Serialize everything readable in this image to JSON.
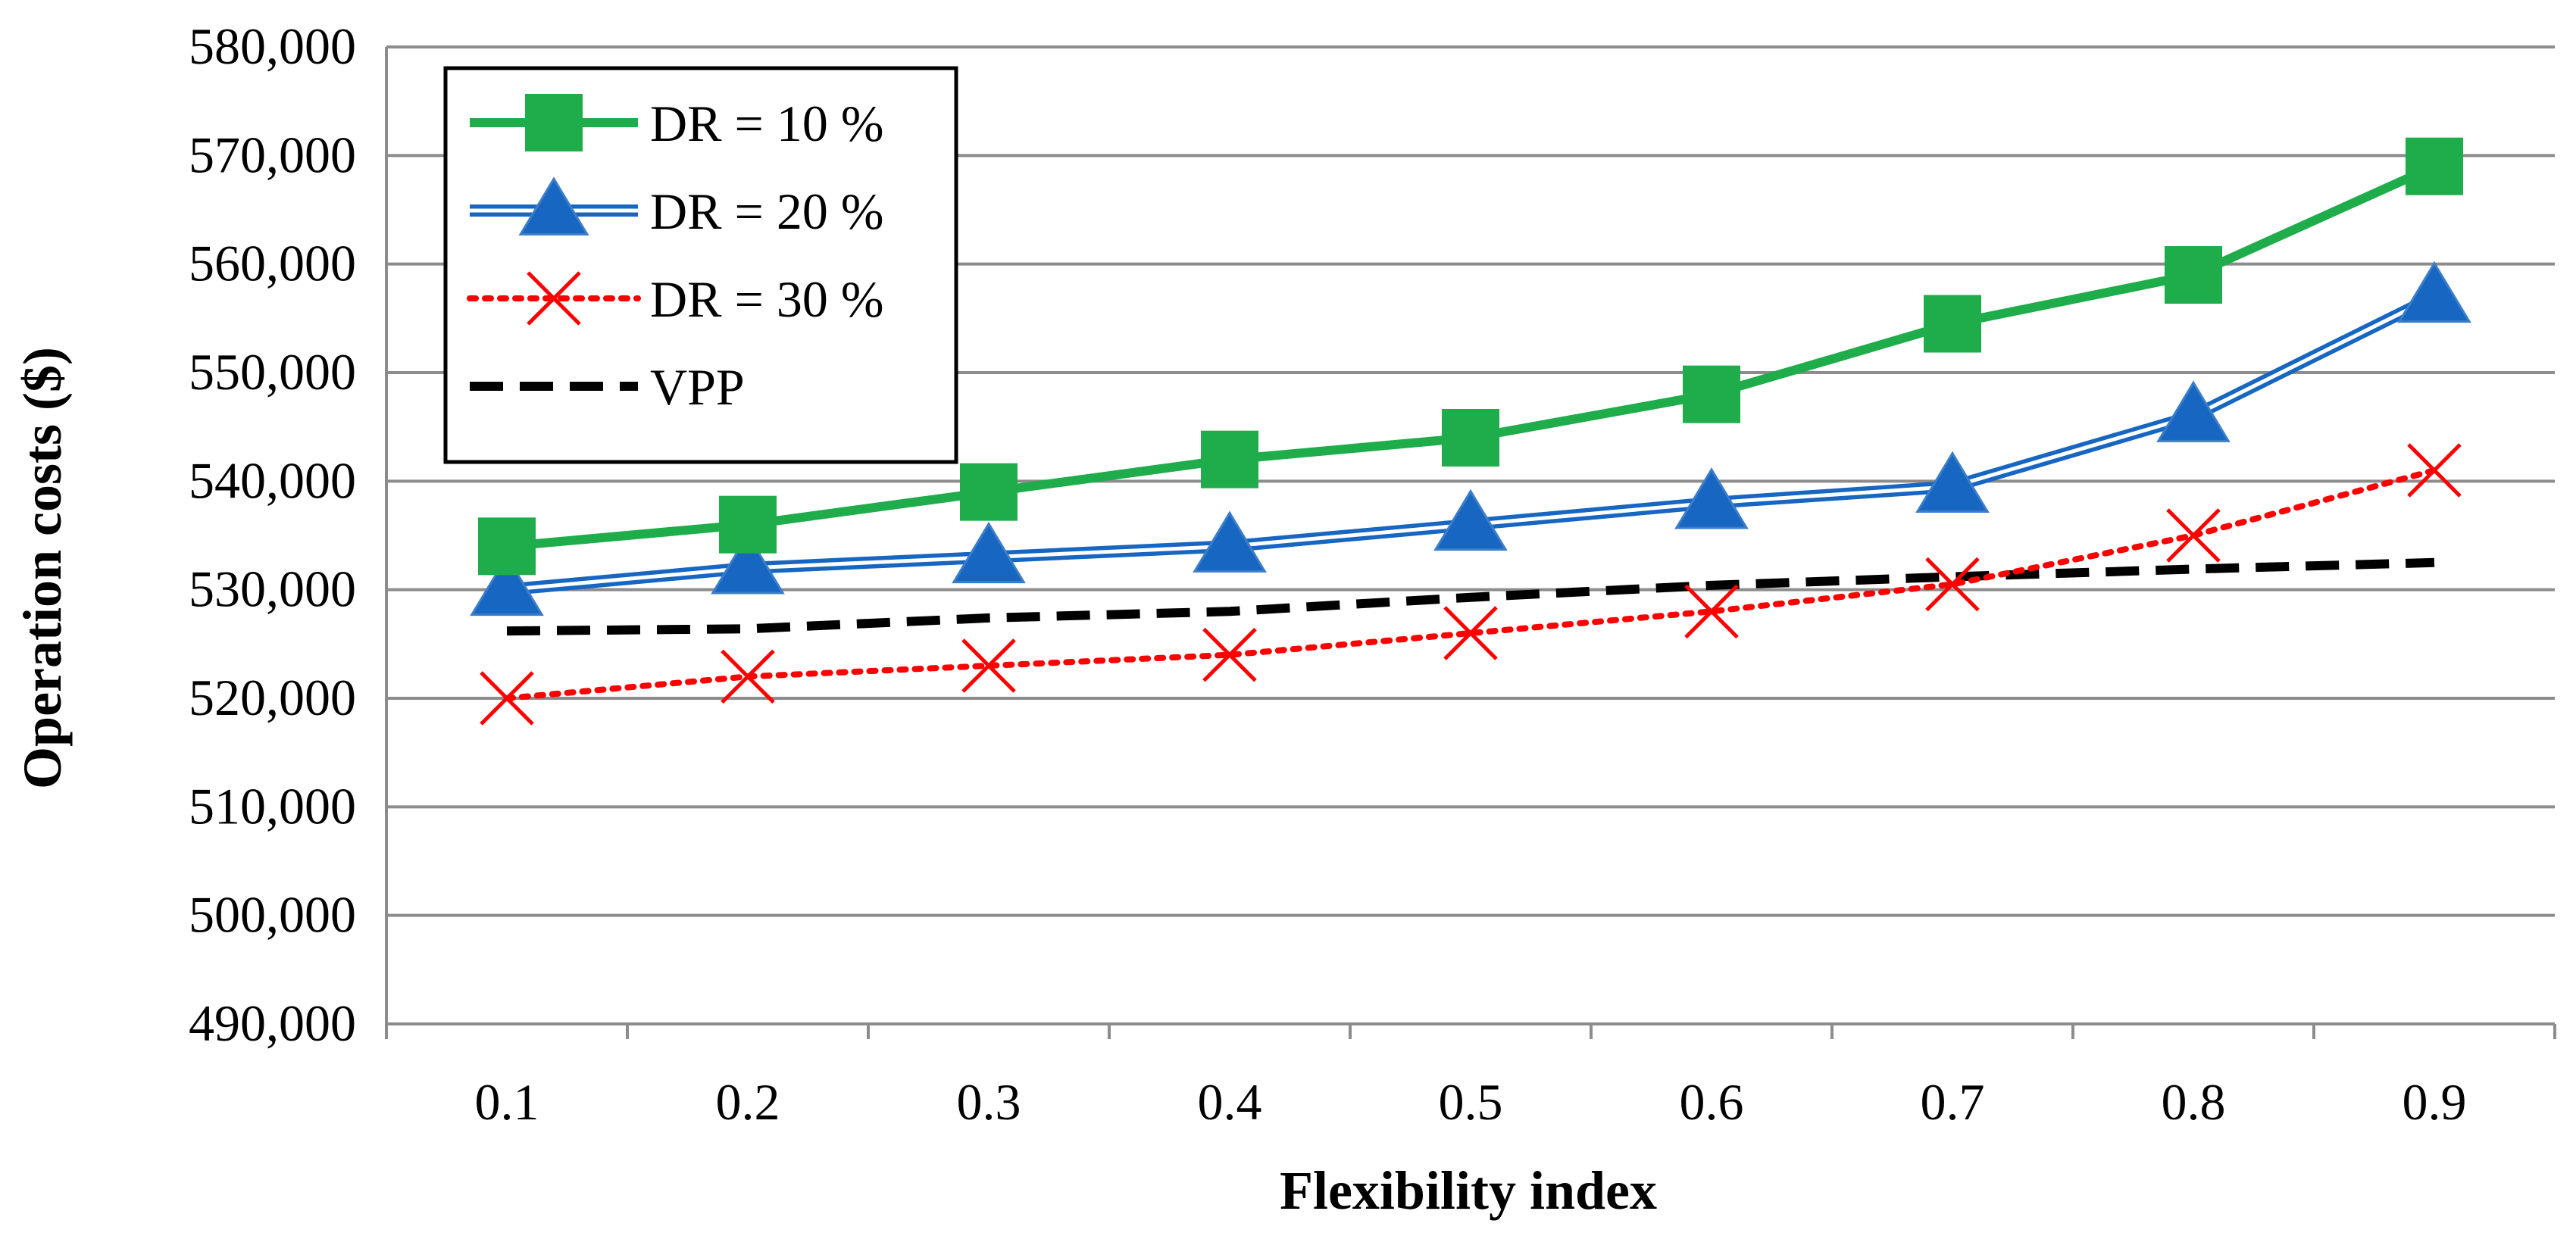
{
  "chart_data": {
    "type": "line",
    "title": "",
    "xlabel": "Flexibility index",
    "ylabel": "Operation costs ($)",
    "categories": [
      "0.1",
      "0.2",
      "0.3",
      "0.4",
      "0.5",
      "0.6",
      "0.7",
      "0.8",
      "0.9"
    ],
    "ylim": [
      490000,
      580000
    ],
    "yticks": [
      490000,
      500000,
      510000,
      520000,
      530000,
      540000,
      550000,
      560000,
      570000,
      580000
    ],
    "ytick_labels": [
      "490,000",
      "500,000",
      "510,000",
      "520,000",
      "530,000",
      "540,000",
      "550,000",
      "560,000",
      "570,000",
      "580,000"
    ],
    "grid": true,
    "legend_position": "top-left",
    "series": [
      {
        "name": "DR = 10 %",
        "color": "#1fad4b",
        "marker": "square",
        "line": "solid",
        "values": [
          534000,
          536000,
          539000,
          542000,
          544000,
          548000,
          554500,
          559000,
          569000
        ]
      },
      {
        "name": "DR = 20 %",
        "color": "#1666c2",
        "marker": "triangle",
        "line": "double",
        "values": [
          530000,
          532000,
          533000,
          534000,
          536000,
          538000,
          539500,
          546000,
          557000
        ]
      },
      {
        "name": "DR = 30 %",
        "color": "#ff0000",
        "marker": "x",
        "line": "dotted",
        "values": [
          520000,
          522000,
          523000,
          524000,
          526000,
          528000,
          530500,
          535000,
          541000
        ]
      },
      {
        "name": "VPP",
        "color": "#000000",
        "marker": "none",
        "line": "dashed",
        "values": [
          526200,
          526400,
          527400,
          528000,
          529300,
          530400,
          531200,
          531900,
          532500
        ]
      }
    ]
  }
}
